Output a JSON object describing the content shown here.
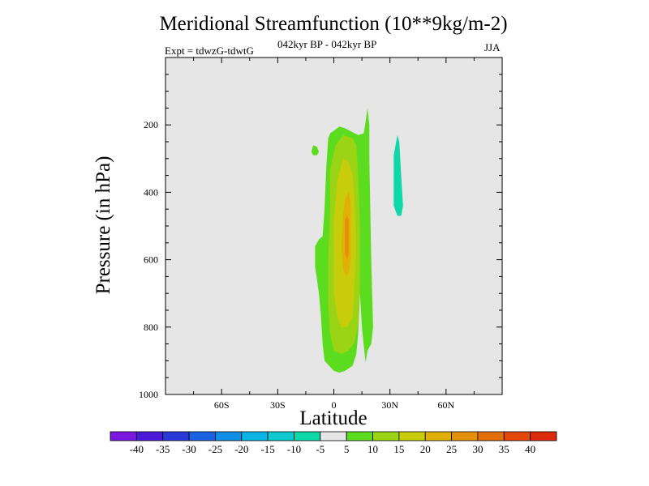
{
  "chart_data": {
    "type": "contour",
    "title": "Meridional Streamfunction (10**9kg/m-2)",
    "subtitle_left": "Expt = tdwzG-tdwtG",
    "subtitle_center": "042kyr BP - 042kyr BP",
    "subtitle_right": "JJA",
    "xlabel": "Latitude",
    "ylabel": "Pressure (in hPa)",
    "xlim": [
      -90,
      90
    ],
    "ylim": [
      1000,
      0
    ],
    "x_ticks": [
      -60,
      -30,
      0,
      30,
      60
    ],
    "x_tick_labels": [
      "60S",
      "30S",
      "0",
      "30N",
      "60N"
    ],
    "y_ticks": [
      200,
      400,
      600,
      800,
      1000
    ],
    "y_tick_labels": [
      "200",
      "400",
      "600",
      "800",
      "1000"
    ],
    "background_fill": "#e6e6e6",
    "colorbar": {
      "levels": [
        -40,
        -35,
        -30,
        -25,
        -20,
        -15,
        -10,
        -5,
        5,
        10,
        15,
        20,
        25,
        30,
        35,
        40
      ],
      "labels": [
        "-40",
        "-35",
        "-30",
        "-25",
        "-20",
        "-15",
        "-10",
        "-5",
        "5",
        "10",
        "15",
        "20",
        "25",
        "30",
        "35",
        "40"
      ],
      "colors": [
        "#7a18e0",
        "#4a1ad8",
        "#2a38d8",
        "#1a62e2",
        "#108ee6",
        "#0ab4e4",
        "#0ccad0",
        "#0ed8a8",
        "#e6e6e6",
        "#5cdc1e",
        "#9ad414",
        "#c8cc0a",
        "#e0b008",
        "#e49008",
        "#e46e08",
        "#e44808",
        "#dc2a0c"
      ]
    },
    "regions": [
      {
        "level": "5 to 10",
        "color": "#5cdc1e",
        "points": [
          [
            0,
            930
          ],
          [
            -5,
            900
          ],
          [
            -6,
            850
          ],
          [
            -7,
            760
          ],
          [
            -8,
            700
          ],
          [
            -9,
            660
          ],
          [
            -10,
            620
          ],
          [
            -10,
            560
          ],
          [
            -8,
            540
          ],
          [
            -6,
            530
          ],
          [
            -5,
            450
          ],
          [
            -4,
            320
          ],
          [
            -3,
            240
          ],
          [
            -2,
            225
          ],
          [
            3,
            205
          ],
          [
            6,
            210
          ],
          [
            13,
            230
          ],
          [
            16,
            225
          ],
          [
            17,
            190
          ],
          [
            18,
            150
          ],
          [
            19,
            200
          ],
          [
            19,
            300
          ],
          [
            20,
            600
          ],
          [
            21,
            800
          ],
          [
            20,
            850
          ],
          [
            18,
            870
          ],
          [
            17,
            905
          ],
          [
            16,
            855
          ],
          [
            15,
            800
          ],
          [
            14,
            700
          ],
          [
            13,
            820
          ],
          [
            12,
            880
          ],
          [
            10,
            915
          ],
          [
            6,
            930
          ],
          [
            3,
            935
          ]
        ]
      },
      {
        "level": "5 to 10",
        "color": "#5cdc1e",
        "points": [
          [
            -11,
            260
          ],
          [
            -9,
            265
          ],
          [
            -8,
            280
          ],
          [
            -9,
            290
          ],
          [
            -11,
            290
          ],
          [
            -12,
            280
          ]
        ]
      },
      {
        "level": "10 to 15",
        "color": "#9ad414",
        "points": [
          [
            0,
            870
          ],
          [
            -2,
            820
          ],
          [
            -3,
            730
          ],
          [
            -3,
            600
          ],
          [
            -2,
            450
          ],
          [
            -2,
            330
          ],
          [
            1,
            260
          ],
          [
            5,
            230
          ],
          [
            10,
            240
          ],
          [
            12,
            260
          ],
          [
            13,
            350
          ],
          [
            14,
            500
          ],
          [
            14,
            680
          ],
          [
            13,
            790
          ],
          [
            11,
            845
          ],
          [
            8,
            870
          ],
          [
            4,
            880
          ]
        ]
      },
      {
        "level": "15 to 20",
        "color": "#c8cc0a",
        "points": [
          [
            2,
            770
          ],
          [
            0,
            700
          ],
          [
            0,
            590
          ],
          [
            0,
            480
          ],
          [
            2,
            360
          ],
          [
            5,
            300
          ],
          [
            8,
            310
          ],
          [
            10,
            350
          ],
          [
            11,
            420
          ],
          [
            12,
            560
          ],
          [
            11,
            690
          ],
          [
            10,
            770
          ],
          [
            7,
            800
          ],
          [
            4,
            800
          ]
        ]
      },
      {
        "level": "20 to 25",
        "color": "#e0b008",
        "points": [
          [
            5,
            630
          ],
          [
            4,
            560
          ],
          [
            5,
            470
          ],
          [
            6,
            420
          ],
          [
            8,
            400
          ],
          [
            9,
            430
          ],
          [
            9,
            520
          ],
          [
            9,
            600
          ],
          [
            8,
            640
          ],
          [
            7,
            650
          ]
        ]
      },
      {
        "level": "25 to 30",
        "color": "#e49008",
        "points": [
          [
            6,
            580
          ],
          [
            6,
            530
          ],
          [
            6,
            480
          ],
          [
            7,
            470
          ],
          [
            8,
            480
          ],
          [
            8,
            540
          ],
          [
            8,
            580
          ],
          [
            7,
            600
          ]
        ]
      },
      {
        "level": "-10 to -5",
        "color": "#0ed8a8",
        "points": [
          [
            34,
            470
          ],
          [
            32,
            440
          ],
          [
            32,
            360
          ],
          [
            32,
            290
          ],
          [
            34,
            230
          ],
          [
            35,
            250
          ],
          [
            36,
            350
          ],
          [
            37,
            440
          ],
          [
            36,
            470
          ]
        ]
      }
    ]
  }
}
